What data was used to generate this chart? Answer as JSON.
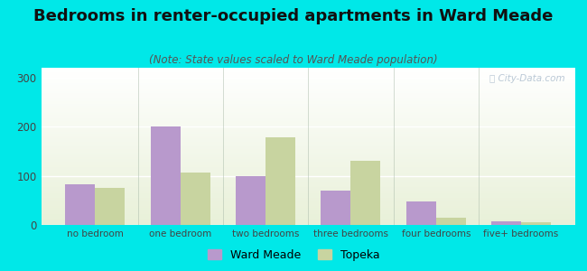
{
  "title": "Bedrooms in renter-occupied apartments in Ward Meade",
  "subtitle": "(Note: State values scaled to Ward Meade population)",
  "categories": [
    "no bedroom",
    "one bedroom",
    "two bedrooms",
    "three bedrooms",
    "four bedrooms",
    "five+ bedrooms"
  ],
  "ward_meade": [
    83,
    200,
    100,
    70,
    48,
    8
  ],
  "topeka": [
    75,
    107,
    178,
    130,
    15,
    5
  ],
  "ward_meade_color": "#b899cc",
  "topeka_color": "#c8d4a0",
  "ylim": [
    0,
    320
  ],
  "yticks": [
    0,
    100,
    200,
    300
  ],
  "bar_width": 0.35,
  "background_outer": "#00e8e8",
  "title_fontsize": 13,
  "subtitle_fontsize": 8.5,
  "legend_labels": [
    "Ward Meade",
    "Topeka"
  ],
  "watermark": "Ⓣ City-Data.com"
}
